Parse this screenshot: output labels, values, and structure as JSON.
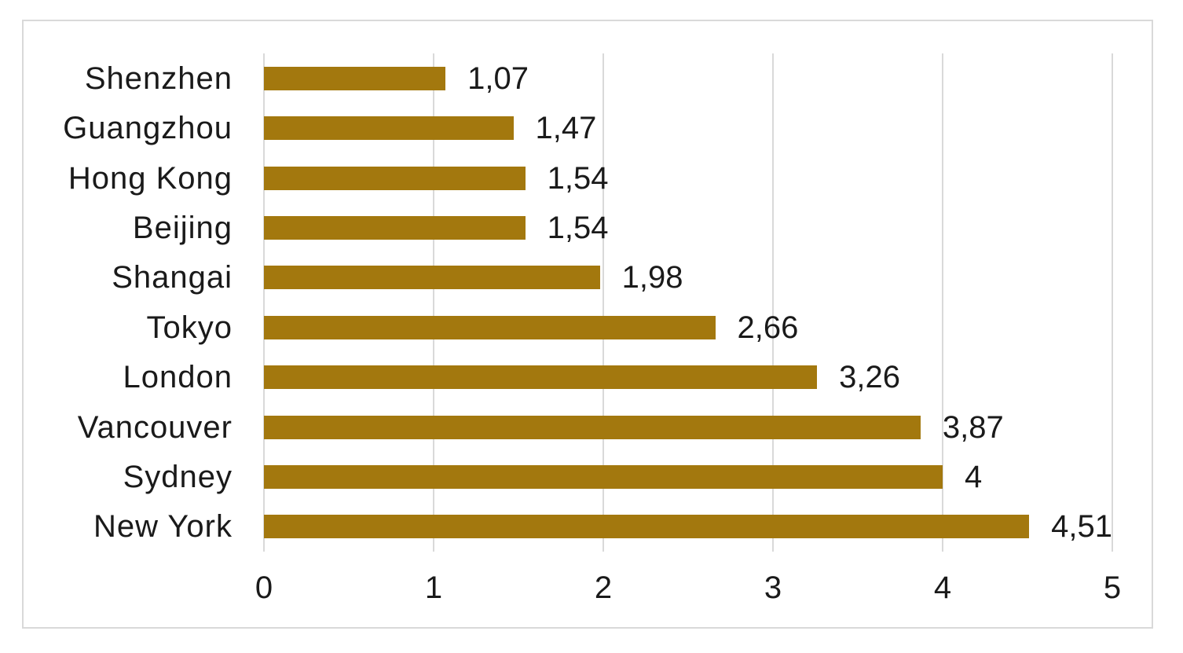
{
  "chart_data": {
    "type": "bar",
    "orientation": "horizontal",
    "title": "",
    "xlabel": "",
    "ylabel": "",
    "categories": [
      "Shenzhen",
      "Guangzhou",
      "Hong Kong",
      "Beijing",
      "Shangai",
      "Tokyo",
      "London",
      "Vancouver",
      "Sydney",
      "New York"
    ],
    "values": [
      1.07,
      1.47,
      1.54,
      1.54,
      1.98,
      2.66,
      3.26,
      3.87,
      4,
      4.51
    ],
    "value_labels": [
      "1,07",
      "1,47",
      "1,54",
      "1,54",
      "1,98",
      "2,66",
      "3,26",
      "3,87",
      "4",
      "4,51"
    ],
    "x_ticks": [
      "0",
      "1",
      "2",
      "3",
      "4",
      "5"
    ],
    "xlim": [
      0,
      5
    ],
    "grid": "vertical-gridlines-on",
    "legend": "none",
    "bar_color": "#A3780E",
    "grid_color": "#D9D9D9",
    "frame_color": "#D9D9D9",
    "text_color": "#1a1a1a",
    "background_color": "#ffffff"
  }
}
